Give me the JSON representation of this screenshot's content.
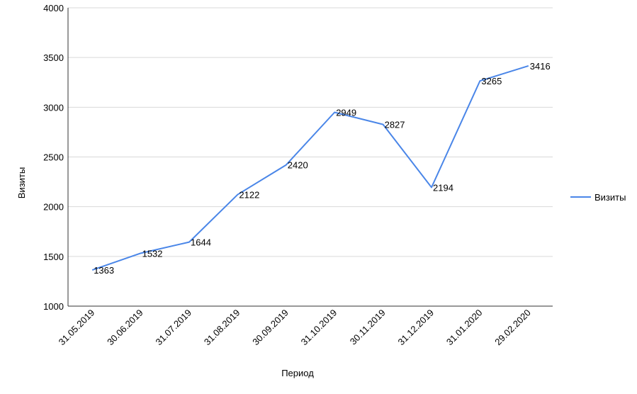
{
  "chart_data": {
    "type": "line",
    "title": "",
    "xlabel": "Период",
    "ylabel": "Визиты",
    "ylim": [
      1000,
      4000
    ],
    "yticks": [
      1000,
      1500,
      2000,
      2500,
      3000,
      3500,
      4000
    ],
    "grid": true,
    "legend_position": "right",
    "categories": [
      "31.05.2019",
      "30.06.2019",
      "31.07.2019",
      "31.08.2019",
      "30.09.2019",
      "31.10.2019",
      "30.11.2019",
      "31.12.2019",
      "31.01.2020",
      "29.02.2020"
    ],
    "series": [
      {
        "name": "Визиты",
        "color": "#4a86e8",
        "values": [
          1363,
          1532,
          1644,
          2122,
          2420,
          2949,
          2827,
          2194,
          3265,
          3416
        ]
      }
    ]
  }
}
